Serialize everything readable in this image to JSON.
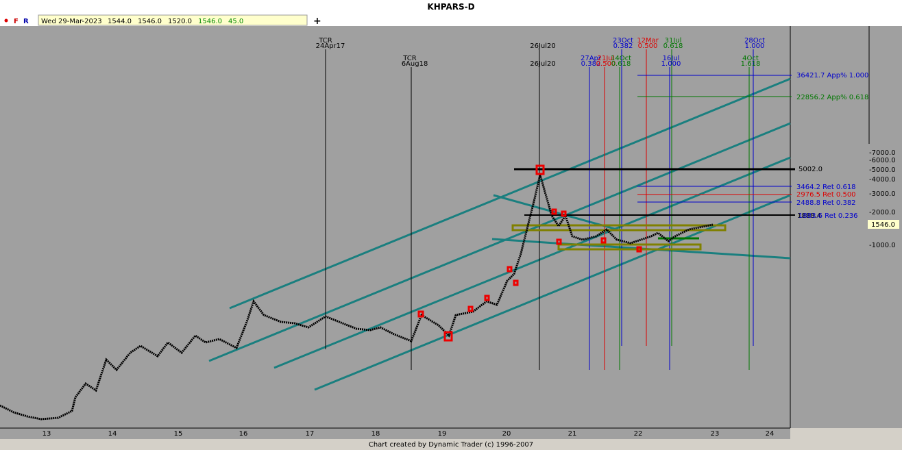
{
  "window": {
    "title": "KHPARS-D"
  },
  "toolbar": {
    "flags": [
      "F",
      "R"
    ],
    "date": "Wed 29-Mar-2023",
    "open": "1544.0",
    "high": "1546.0",
    "low": "1520.0",
    "close": "1546.0",
    "change": "45.0"
  },
  "price_axis": {
    "labels": [
      "7000.0",
      "6000.0",
      "5000.0",
      "4000.0",
      "3000.0",
      "2000.0",
      "1000.0"
    ],
    "current": "1546.0"
  },
  "time_axis": {
    "labels": [
      "13",
      "14",
      "15",
      "16",
      "17",
      "18",
      "19",
      "20",
      "21",
      "22",
      "23",
      "24"
    ]
  },
  "time_markers": [
    {
      "lines": [
        "TCR",
        "24Apr17"
      ]
    },
    {
      "lines": [
        "TCR",
        "6Aug18"
      ]
    },
    {
      "lines": [
        "26Jul20",
        "26Jul20"
      ]
    },
    {
      "lines": [
        "27Apr",
        "0.382"
      ]
    },
    {
      "lines": [
        "21Jul",
        "0.500"
      ]
    },
    {
      "lines": [
        "14Oct",
        "0.618"
      ]
    },
    {
      "lines": [
        "23Oct",
        "0.382"
      ]
    },
    {
      "lines": [
        "12Mar",
        "0.500"
      ]
    },
    {
      "lines": [
        "31Jul",
        "0.618"
      ]
    },
    {
      "lines": [
        "16Jul",
        "1.000"
      ]
    },
    {
      "lines": [
        "28Oct",
        "1.000"
      ]
    },
    {
      "lines": [
        "4Oct",
        "1.618"
      ]
    }
  ],
  "levels": [
    "36421.7 App% 1.000",
    "22856.2 App% 0.618",
    "5002.0",
    "3464.2 Ret 0.618",
    "2976.5 Ret 0.500",
    "2488.8 Ret 0.382",
    "1888.4",
    "1883.6 Ret 0.236"
  ],
  "footer": "Chart created by Dynamic Trader  (c) 1996-2007"
}
